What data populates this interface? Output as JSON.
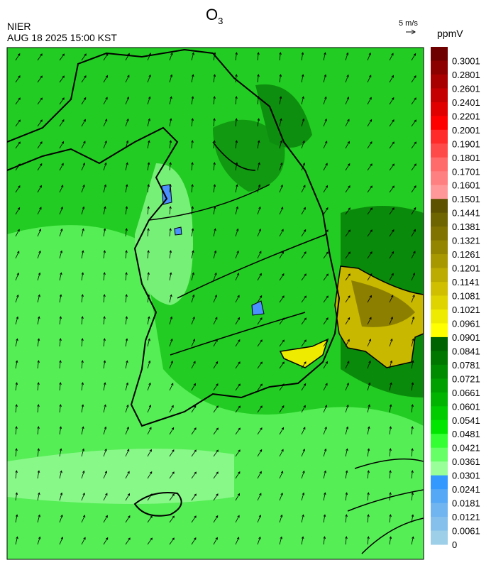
{
  "header": {
    "title": "O",
    "title_sub": "3",
    "agency": "NIER",
    "datetime": "AUG 18 2025 15:00 KST",
    "wind_scale": "5 m/s"
  },
  "colorbar": {
    "unit": "ppmV",
    "levels": [
      {
        "label": "0.3001",
        "color": "#6e0000"
      },
      {
        "label": "0.2801",
        "color": "#8c0000"
      },
      {
        "label": "0.2601",
        "color": "#a80000"
      },
      {
        "label": "0.2401",
        "color": "#c40000"
      },
      {
        "label": "0.2201",
        "color": "#e00000"
      },
      {
        "label": "0.2001",
        "color": "#ff0000"
      },
      {
        "label": "0.1901",
        "color": "#ff2a2a"
      },
      {
        "label": "0.1801",
        "color": "#ff4a4a"
      },
      {
        "label": "0.1701",
        "color": "#ff6a6a"
      },
      {
        "label": "0.1601",
        "color": "#ff8080"
      },
      {
        "label": "0.1501",
        "color": "#ff9999"
      },
      {
        "label": "0.1441",
        "color": "#5c5200"
      },
      {
        "label": "0.1381",
        "color": "#6e6400"
      },
      {
        "label": "0.1321",
        "color": "#807300"
      },
      {
        "label": "0.1261",
        "color": "#948500"
      },
      {
        "label": "0.1201",
        "color": "#a89800"
      },
      {
        "label": "0.1141",
        "color": "#bcab00"
      },
      {
        "label": "0.1081",
        "color": "#cfbf00"
      },
      {
        "label": "0.1021",
        "color": "#e0d400"
      },
      {
        "label": "0.0961",
        "color": "#eeea00"
      },
      {
        "label": "0.0901",
        "color": "#ffff00"
      },
      {
        "label": "0.0841",
        "color": "#006400"
      },
      {
        "label": "0.0781",
        "color": "#007800"
      },
      {
        "label": "0.0721",
        "color": "#008c00"
      },
      {
        "label": "0.0661",
        "color": "#00a000"
      },
      {
        "label": "0.0601",
        "color": "#00b400"
      },
      {
        "label": "0.0541",
        "color": "#00cc00"
      },
      {
        "label": "0.0481",
        "color": "#00e600"
      },
      {
        "label": "0.0421",
        "color": "#33ff33"
      },
      {
        "label": "0.0361",
        "color": "#66ff66"
      },
      {
        "label": "0.0301",
        "color": "#99ff99"
      },
      {
        "label": "0.0241",
        "color": "#3399ff"
      },
      {
        "label": "0.0181",
        "color": "#55a8f5"
      },
      {
        "label": "0.0121",
        "color": "#70b5f0"
      },
      {
        "label": "0.0061",
        "color": "#85c0ec"
      },
      {
        "label": "0",
        "color": "#9dcfe8"
      }
    ]
  }
}
